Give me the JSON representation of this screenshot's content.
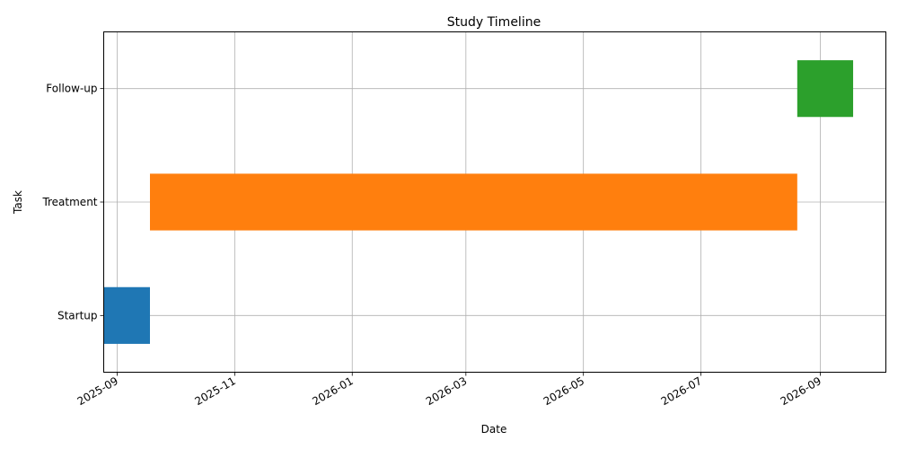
{
  "chart_data": {
    "type": "bar",
    "title": "Study Timeline",
    "xlabel": "Date",
    "ylabel": "Task",
    "xlim": [
      "2025-08-25",
      "2026-10-05"
    ],
    "x_ticks": [
      "2025-09",
      "2025-11",
      "2026-01",
      "2026-03",
      "2026-05",
      "2026-07",
      "2026-09"
    ],
    "tasks": [
      {
        "label": "Startup",
        "start": "2025-08-20",
        "end": "2025-09-18",
        "color": "#1f77b4"
      },
      {
        "label": "Treatment",
        "start": "2025-09-18",
        "end": "2026-08-20",
        "color": "#ff7f0e"
      },
      {
        "label": "Follow-up",
        "start": "2026-08-20",
        "end": "2026-09-18",
        "color": "#2ca02c"
      }
    ],
    "grid": true
  }
}
